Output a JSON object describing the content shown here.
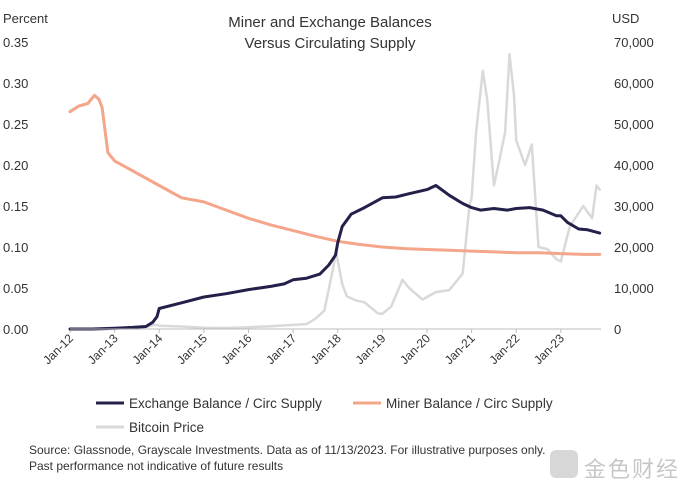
{
  "chart_data": {
    "type": "line",
    "title_lines": [
      "Miner and Exchange Balances",
      "Versus Circulating Supply"
    ],
    "left_axis": {
      "unit_label": "Percent",
      "range": [
        0,
        0.35
      ],
      "ticks": [
        "0.00",
        "0.05",
        "0.10",
        "0.15",
        "0.20",
        "0.25",
        "0.30",
        "0.35"
      ]
    },
    "right_axis": {
      "unit_label": "USD",
      "range": [
        0,
        70000
      ],
      "ticks": [
        "0",
        "10,000",
        "20,000",
        "30,000",
        "40,000",
        "50,000",
        "60,000",
        "70,000"
      ]
    },
    "x_axis": {
      "range": [
        2012.0,
        2023.9
      ],
      "tick_years": [
        2012,
        2013,
        2014,
        2015,
        2016,
        2017,
        2018,
        2019,
        2020,
        2021,
        2022,
        2023
      ],
      "tick_labels": [
        "Jan-12",
        "Jan-13",
        "Jan-14",
        "Jan-15",
        "Jan-16",
        "Jan-17",
        "Jan-18",
        "Jan-19",
        "Jan-20",
        "Jan-21",
        "Jan-22",
        "Jan-23"
      ]
    },
    "grid": false,
    "legend_position": "bottom",
    "series": [
      {
        "name": "Exchange Balance / Circ Supply",
        "color": "#23204a",
        "axis": "left",
        "x": [
          2012.0,
          2012.5,
          2013.0,
          2013.4,
          2013.7,
          2013.85,
          2013.95,
          2014.0,
          2014.5,
          2015.0,
          2015.5,
          2016.0,
          2016.5,
          2016.8,
          2017.0,
          2017.3,
          2017.6,
          2017.8,
          2017.95,
          2018.0,
          2018.1,
          2018.3,
          2018.6,
          2019.0,
          2019.3,
          2019.6,
          2020.0,
          2020.2,
          2020.5,
          2020.8,
          2021.0,
          2021.2,
          2021.5,
          2021.8,
          2022.0,
          2022.3,
          2022.6,
          2022.9,
          2023.0,
          2023.15,
          2023.4,
          2023.6,
          2023.87
        ],
        "values": [
          0.0,
          0.0,
          0.001,
          0.002,
          0.003,
          0.008,
          0.015,
          0.025,
          0.032,
          0.039,
          0.043,
          0.048,
          0.052,
          0.055,
          0.06,
          0.062,
          0.067,
          0.078,
          0.09,
          0.105,
          0.125,
          0.14,
          0.148,
          0.16,
          0.161,
          0.165,
          0.17,
          0.175,
          0.163,
          0.153,
          0.148,
          0.145,
          0.147,
          0.145,
          0.147,
          0.148,
          0.145,
          0.138,
          0.138,
          0.13,
          0.122,
          0.121,
          0.117
        ]
      },
      {
        "name": "Miner Balance / Circ Supply",
        "color": "#f4a58a",
        "axis": "left",
        "x": [
          2012.0,
          2012.2,
          2012.4,
          2012.55,
          2012.65,
          2012.72,
          2012.85,
          2013.0,
          2013.5,
          2014.0,
          2014.5,
          2015.0,
          2015.5,
          2016.0,
          2016.5,
          2017.0,
          2017.5,
          2018.0,
          2018.5,
          2019.0,
          2019.5,
          2020.0,
          2020.5,
          2021.0,
          2021.5,
          2022.0,
          2022.5,
          2023.0,
          2023.5,
          2023.87
        ],
        "values": [
          0.265,
          0.272,
          0.275,
          0.285,
          0.28,
          0.27,
          0.215,
          0.205,
          0.19,
          0.175,
          0.16,
          0.155,
          0.145,
          0.135,
          0.127,
          0.12,
          0.113,
          0.107,
          0.103,
          0.1,
          0.098,
          0.097,
          0.096,
          0.095,
          0.094,
          0.093,
          0.093,
          0.092,
          0.091,
          0.091
        ]
      },
      {
        "name": "Bitcoin Price",
        "color": "#d9d9d9",
        "axis": "right",
        "x": [
          2012.0,
          2012.8,
          2013.0,
          2013.3,
          2013.5,
          2013.9,
          2014.0,
          2014.5,
          2015.0,
          2015.5,
          2016.0,
          2016.5,
          2017.0,
          2017.3,
          2017.5,
          2017.7,
          2017.9,
          2017.96,
          2018.1,
          2018.2,
          2018.4,
          2018.6,
          2018.9,
          2019.0,
          2019.2,
          2019.45,
          2019.6,
          2019.9,
          2020.2,
          2020.5,
          2020.8,
          2020.95,
          2021.0,
          2021.1,
          2021.25,
          2021.35,
          2021.5,
          2021.6,
          2021.75,
          2021.85,
          2021.95,
          2022.0,
          2022.2,
          2022.35,
          2022.5,
          2022.7,
          2022.9,
          2023.0,
          2023.2,
          2023.5,
          2023.7,
          2023.8,
          2023.87
        ],
        "values": [
          5,
          10,
          15,
          100,
          100,
          1000,
          800,
          600,
          300,
          250,
          430,
          650,
          1000,
          1200,
          2500,
          4500,
          15000,
          19000,
          11000,
          8000,
          7000,
          6500,
          3800,
          3700,
          5500,
          12000,
          10000,
          7200,
          9000,
          9500,
          13500,
          30000,
          32000,
          48000,
          63000,
          56000,
          35000,
          40000,
          48000,
          67000,
          57000,
          46000,
          40000,
          45000,
          20000,
          19500,
          17000,
          16500,
          25000,
          30000,
          27000,
          35000,
          34000
        ]
      }
    ],
    "legend": [
      {
        "name": "Exchange Balance / Circ Supply",
        "color": "#23204a"
      },
      {
        "name": "Miner Balance / Circ Supply",
        "color": "#f4a58a"
      },
      {
        "name": "Bitcoin Price",
        "color": "#d9d9d9"
      }
    ]
  },
  "footer": {
    "source_line1": "Source: Glassnode, Grayscale Investments. Data as of 11/13/2023. For illustrative purposes only.",
    "source_line2": "Past performance not indicative of future results"
  },
  "watermark": {
    "text": "金色财经",
    "logo_icon": "jinse-logo-icon"
  }
}
